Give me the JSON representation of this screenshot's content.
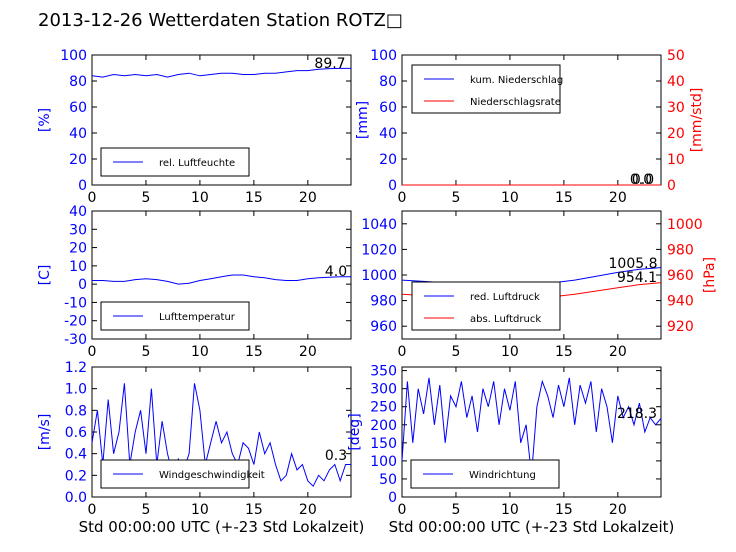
{
  "title": "2013-12-26 Wetterdaten Station ROTZ□",
  "colors": {
    "blue": "#0000ff",
    "red": "#ff0000",
    "faint_blue": "#9999ff"
  },
  "chart_data": [
    {
      "id": "humidity",
      "type": "line",
      "ylabel": "[%]",
      "ylim": [
        0,
        100
      ],
      "yticks": [
        0,
        20,
        40,
        60,
        80,
        100
      ],
      "xlim": [
        0,
        24
      ],
      "xticks": [
        0,
        5,
        10,
        15,
        20
      ],
      "xlabel": "",
      "legend": [
        "rel. Luftfeuchte"
      ],
      "legend_placement": "lower-left",
      "annotations": [
        "89.7"
      ],
      "series": [
        {
          "name": "rel. Luftfeuchte",
          "color": "#0000ff",
          "x": [
            0,
            1,
            2,
            3,
            4,
            5,
            6,
            7,
            8,
            9,
            10,
            11,
            12,
            13,
            14,
            15,
            16,
            17,
            18,
            19,
            20,
            21,
            22,
            23,
            24
          ],
          "values": [
            84,
            83,
            85,
            84,
            85,
            84,
            85,
            83,
            85,
            86,
            84,
            85,
            86,
            86,
            85,
            85,
            86,
            86,
            87,
            88,
            88,
            89,
            89.5,
            89.7,
            89.7
          ]
        }
      ]
    },
    {
      "id": "precip",
      "type": "line",
      "ylabel": "[mm]",
      "ylim": [
        0,
        100
      ],
      "yticks": [
        0,
        20,
        40,
        60,
        80,
        100
      ],
      "ylabel2": "[mm/std]",
      "ylim2": [
        0,
        50
      ],
      "yticks2": [
        0,
        10,
        20,
        30,
        40,
        50
      ],
      "xlim": [
        0,
        24
      ],
      "xticks": [
        0,
        5,
        10,
        15,
        20
      ],
      "xlabel": "",
      "legend": [
        "kum. Niederschlag",
        "Niederschlagsrate"
      ],
      "legend_placement": "upper-left",
      "annotations": [
        "0.0",
        "0.0"
      ],
      "series": [
        {
          "name": "kum. Niederschlag",
          "color": "#0000ff",
          "x": [
            0,
            24
          ],
          "values": [
            0,
            0
          ]
        },
        {
          "name": "Niederschlagsrate",
          "color": "#ff0000",
          "x": [
            0,
            24
          ],
          "values": [
            0,
            0
          ]
        }
      ]
    },
    {
      "id": "temperature",
      "type": "line",
      "ylabel": "[C]",
      "ylim": [
        -30,
        40
      ],
      "yticks": [
        -30,
        -20,
        -10,
        0,
        10,
        20,
        30,
        40
      ],
      "xlim": [
        0,
        24
      ],
      "xticks": [
        0,
        5,
        10,
        15,
        20
      ],
      "xlabel": "",
      "legend": [
        "Lufttemperatur"
      ],
      "legend_placement": "lower-left",
      "annotations": [
        "4.0"
      ],
      "series": [
        {
          "name": "Lufttemperatur",
          "color": "#0000ff",
          "x": [
            0,
            1,
            2,
            3,
            4,
            5,
            6,
            7,
            8,
            9,
            10,
            11,
            12,
            13,
            14,
            15,
            16,
            17,
            18,
            19,
            20,
            21,
            22,
            23,
            24
          ],
          "values": [
            2,
            2,
            1.5,
            1.5,
            2.5,
            3,
            2.5,
            1.5,
            0,
            0.5,
            2,
            3,
            4,
            5,
            5,
            4,
            3.5,
            2.5,
            2,
            2,
            3,
            3.5,
            3.8,
            4,
            4
          ]
        }
      ]
    },
    {
      "id": "pressure",
      "type": "line",
      "ylabel": "[hPa]",
      "ylim": [
        950,
        1050
      ],
      "yticks": [
        960,
        980,
        1000,
        1020,
        1040
      ],
      "ylim2": [
        910,
        1010
      ],
      "yticks2": [
        920,
        940,
        960,
        980,
        1000
      ],
      "xlim": [
        0,
        24
      ],
      "xticks": [
        0,
        5,
        10,
        15,
        20
      ],
      "xlabel": "",
      "legend": [
        "red. Luftdruck",
        "abs. Luftdruck"
      ],
      "legend_placement": "lower-left",
      "annotations": [
        "1005.8",
        "954.1"
      ],
      "series": [
        {
          "name": "red. Luftdruck",
          "color": "#0000ff",
          "x": [
            0,
            2,
            4,
            6,
            8,
            10,
            12,
            14,
            16,
            18,
            20,
            22,
            24
          ],
          "values": [
            996,
            995,
            994,
            993,
            993,
            993,
            993.5,
            994,
            996,
            999,
            1002,
            1004.5,
            1005.8
          ]
        },
        {
          "name": "abs. Luftdruck",
          "color": "#ff0000",
          "x": [
            0,
            2,
            4,
            6,
            8,
            10,
            12,
            14,
            16,
            18,
            20,
            22,
            24
          ],
          "values": [
            945,
            944,
            942,
            941,
            941,
            942,
            942.5,
            943,
            945,
            947.5,
            950,
            952.5,
            954.1
          ]
        }
      ]
    },
    {
      "id": "windspeed",
      "type": "line",
      "ylabel": "[m/s]",
      "ylim": [
        0,
        1.2
      ],
      "yticks": [
        "0.0",
        "0.2",
        "0.4",
        "0.6",
        "0.8",
        "1.0",
        "1.2"
      ],
      "xlim": [
        0,
        24
      ],
      "xticks": [
        0,
        5,
        10,
        15,
        20
      ],
      "xlabel": "Std 00:00:00 UTC (+-23 Std Lokalzeit)",
      "legend": [
        "Windgeschwindigkeit"
      ],
      "legend_placement": "lower-left",
      "annotations": [
        "0.3"
      ],
      "series": [
        {
          "name": "Windgeschwindigkeit",
          "color": "#0000ff",
          "x": [
            0,
            0.5,
            1,
            1.5,
            2,
            2.5,
            3,
            3.5,
            4,
            4.5,
            5,
            5.5,
            6,
            6.5,
            7,
            7.5,
            8,
            8.5,
            9,
            9.5,
            10,
            10.5,
            11,
            11.5,
            12,
            12.5,
            13,
            13.5,
            14,
            14.5,
            15,
            15.5,
            16,
            16.5,
            17,
            17.5,
            18,
            18.5,
            19,
            19.5,
            20,
            20.5,
            21,
            21.5,
            22,
            22.5,
            23,
            23.5,
            24
          ],
          "values": [
            0.5,
            0.8,
            0.3,
            0.9,
            0.4,
            0.6,
            1.05,
            0.3,
            0.6,
            0.8,
            0.4,
            1.0,
            0.3,
            0.7,
            0.4,
            0.2,
            0.35,
            0.25,
            0.4,
            1.05,
            0.8,
            0.3,
            0.5,
            0.7,
            0.5,
            0.6,
            0.4,
            0.3,
            0.5,
            0.45,
            0.3,
            0.6,
            0.4,
            0.5,
            0.3,
            0.15,
            0.2,
            0.4,
            0.25,
            0.3,
            0.15,
            0.1,
            0.2,
            0.15,
            0.25,
            0.3,
            0.15,
            0.3,
            0.3
          ]
        }
      ]
    },
    {
      "id": "winddir",
      "type": "line",
      "ylabel": "[deg]",
      "ylim": [
        0,
        360
      ],
      "yticks": [
        0,
        50,
        100,
        150,
        200,
        250,
        300,
        350
      ],
      "xlim": [
        0,
        24
      ],
      "xticks": [
        0,
        5,
        10,
        15,
        20
      ],
      "xlabel": "Std 00:00:00 UTC (+-23 Std Lokalzeit)",
      "legend": [
        "Windrichtung"
      ],
      "legend_placement": "lower-left",
      "annotations": [
        "218.3"
      ],
      "series": [
        {
          "name": "Windrichtung",
          "color": "#0000ff",
          "x": [
            0,
            0.5,
            1,
            1.5,
            2,
            2.5,
            3,
            3.5,
            4,
            4.5,
            5,
            5.5,
            6,
            6.5,
            7,
            7.5,
            8,
            8.5,
            9,
            9.5,
            10,
            10.5,
            11,
            11.5,
            12,
            12.5,
            13,
            13.5,
            14,
            14.5,
            15,
            15.5,
            16,
            16.5,
            17,
            17.5,
            18,
            18.5,
            19,
            19.5,
            20,
            20.5,
            21,
            21.5,
            22,
            22.5,
            23,
            23.5,
            24
          ],
          "values": [
            100,
            320,
            150,
            300,
            230,
            330,
            200,
            310,
            150,
            280,
            250,
            320,
            220,
            280,
            180,
            300,
            250,
            320,
            200,
            300,
            240,
            320,
            150,
            200,
            60,
            250,
            320,
            280,
            220,
            310,
            250,
            330,
            200,
            310,
            260,
            320,
            180,
            300,
            250,
            150,
            280,
            220,
            250,
            200,
            260,
            180,
            220,
            200,
            218
          ]
        }
      ]
    }
  ]
}
